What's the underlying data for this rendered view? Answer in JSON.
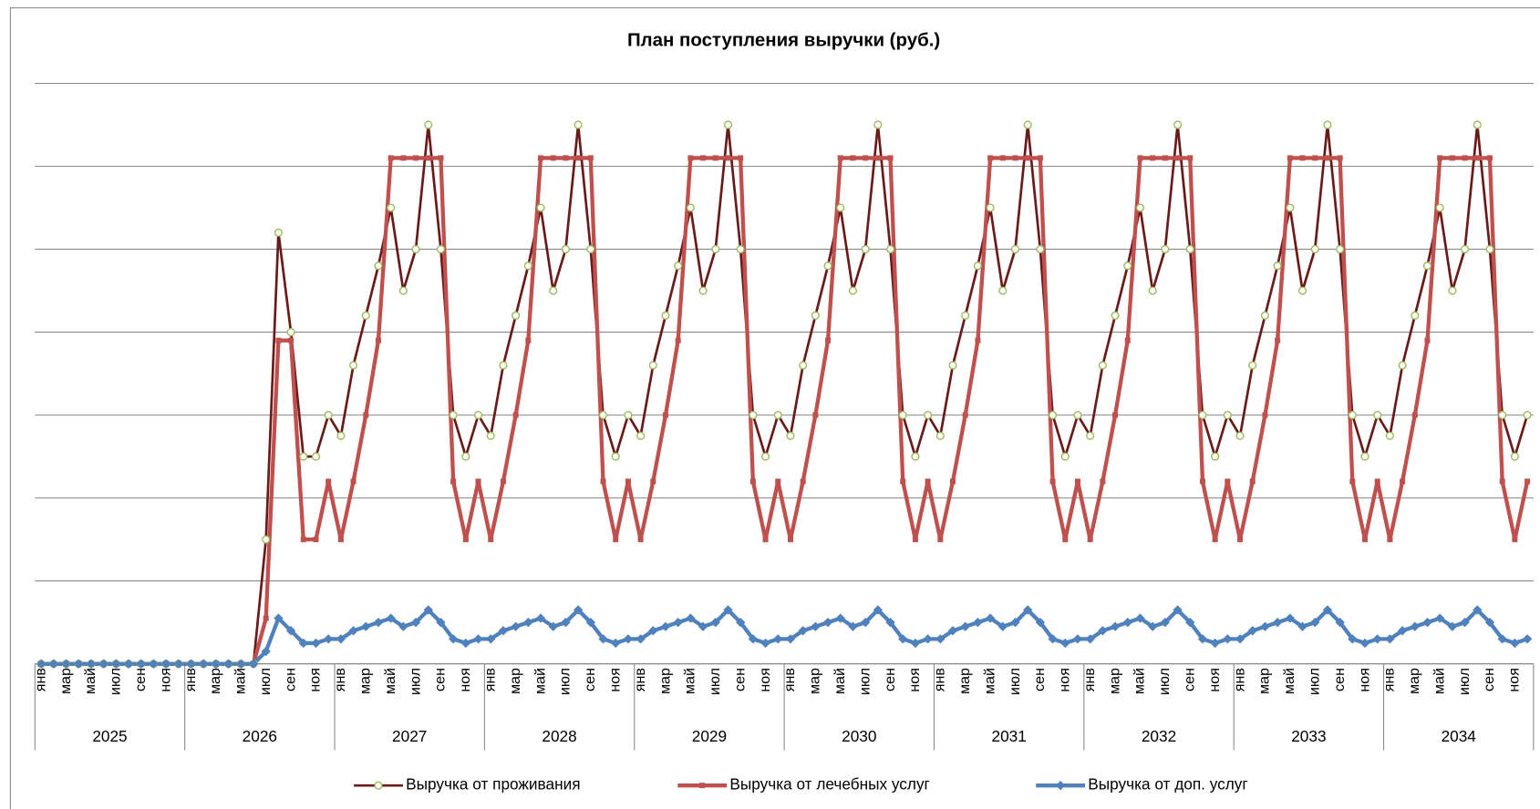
{
  "chart_data": {
    "type": "line",
    "title": "План поступления выручки (руб.)",
    "categories": [
      "янв",
      null,
      "мар",
      null,
      "май",
      null,
      "июл",
      null,
      "сен",
      null,
      "ноя",
      null,
      "янв",
      null,
      "мар",
      null,
      "май",
      null,
      "июл",
      null,
      "сен",
      null,
      "ноя",
      null,
      "янв",
      null,
      "мар",
      null,
      "май",
      null,
      "июл",
      null,
      "сен",
      null,
      "ноя",
      null,
      "янв",
      null,
      "мар",
      null,
      "май",
      null,
      "июл",
      null,
      "сен",
      null,
      "ноя",
      null,
      "янв",
      null,
      "мар",
      null,
      "май",
      null,
      "июл",
      null,
      "сен",
      null,
      "ноя",
      null,
      "янв",
      null,
      "мар",
      null,
      "май",
      null,
      "июл",
      null,
      "сен",
      null,
      "ноя",
      null,
      "янв",
      null,
      "мар",
      null,
      "май",
      null,
      "июл",
      null,
      "сен",
      null,
      "ноя",
      null,
      "янв",
      null,
      "мар",
      null,
      "май",
      null,
      "июл",
      null,
      "сен",
      null,
      "ноя",
      null,
      "янв",
      null,
      "мар",
      null,
      "май",
      null,
      "июл",
      null,
      "сен",
      null,
      "ноя",
      null,
      "янв",
      null,
      "мар",
      null,
      "май",
      null,
      "июл",
      null,
      "сен",
      null,
      "ноя",
      null
    ],
    "category_groups": [
      "2025",
      "2026",
      "2027",
      "2028",
      "2029",
      "2030",
      "2031",
      "2032",
      "2033",
      "2034"
    ],
    "series": [
      {
        "name": "Выручка от проживания",
        "color": "#6b1a1a",
        "marker": "circle",
        "marker_color": "#9bbb59",
        "values": [
          0,
          0,
          0,
          0,
          0,
          0,
          0,
          0,
          0,
          0,
          0,
          0,
          0,
          0,
          0,
          0,
          0,
          0,
          1.5,
          5.2,
          4,
          2.5,
          2.5,
          3,
          2.75,
          3.6,
          4.2,
          4.8,
          5.5,
          4.5,
          5,
          6.5,
          5,
          3,
          2.5,
          3,
          2.75,
          3.6,
          4.2,
          4.8,
          5.5,
          4.5,
          5,
          6.5,
          5,
          3,
          2.5,
          3,
          2.75,
          3.6,
          4.2,
          4.8,
          5.5,
          4.5,
          5,
          6.5,
          5,
          3,
          2.5,
          3,
          2.75,
          3.6,
          4.2,
          4.8,
          5.5,
          4.5,
          5,
          6.5,
          5,
          3,
          2.5,
          3,
          2.75,
          3.6,
          4.2,
          4.8,
          5.5,
          4.5,
          5,
          6.5,
          5,
          3,
          2.5,
          3,
          2.75,
          3.6,
          4.2,
          4.8,
          5.5,
          4.5,
          5,
          6.5,
          5,
          3,
          2.5,
          3,
          2.75,
          3.6,
          4.2,
          4.8,
          5.5,
          4.5,
          5,
          6.5,
          5,
          3,
          2.5,
          3,
          2.75,
          3.6,
          4.2,
          4.8,
          5.5,
          4.5,
          5,
          6.5,
          5,
          3,
          2.5,
          3
        ]
      },
      {
        "name": "Выручка от лечебных услуг",
        "color": "#c0504d",
        "marker": "square",
        "marker_color": "#c0504d",
        "values": [
          0,
          0,
          0,
          0,
          0,
          0,
          0,
          0,
          0,
          0,
          0,
          0,
          0,
          0,
          0,
          0,
          0,
          0,
          0.55,
          3.9,
          3.9,
          1.5,
          1.5,
          2.2,
          1.5,
          2.2,
          3,
          3.9,
          6.1,
          6.1,
          6.1,
          6.1,
          6.1,
          2.2,
          1.5,
          2.2,
          1.5,
          2.2,
          3,
          3.9,
          6.1,
          6.1,
          6.1,
          6.1,
          6.1,
          2.2,
          1.5,
          2.2,
          1.5,
          2.2,
          3,
          3.9,
          6.1,
          6.1,
          6.1,
          6.1,
          6.1,
          2.2,
          1.5,
          2.2,
          1.5,
          2.2,
          3,
          3.9,
          6.1,
          6.1,
          6.1,
          6.1,
          6.1,
          2.2,
          1.5,
          2.2,
          1.5,
          2.2,
          3,
          3.9,
          6.1,
          6.1,
          6.1,
          6.1,
          6.1,
          2.2,
          1.5,
          2.2,
          1.5,
          2.2,
          3,
          3.9,
          6.1,
          6.1,
          6.1,
          6.1,
          6.1,
          2.2,
          1.5,
          2.2,
          1.5,
          2.2,
          3,
          3.9,
          6.1,
          6.1,
          6.1,
          6.1,
          6.1,
          2.2,
          1.5,
          2.2,
          1.5,
          2.2,
          3,
          3.9,
          6.1,
          6.1,
          6.1,
          6.1,
          6.1,
          2.2,
          1.5,
          2.2
        ]
      },
      {
        "name": "Выручка от доп. услуг",
        "color": "#4f81bd",
        "marker": "diamond",
        "marker_color": "#4f81bd",
        "values": [
          0,
          0,
          0,
          0,
          0,
          0,
          0,
          0,
          0,
          0,
          0,
          0,
          0,
          0,
          0,
          0,
          0,
          0,
          0.15,
          0.55,
          0.4,
          0.25,
          0.25,
          0.3,
          0.3,
          0.4,
          0.45,
          0.5,
          0.55,
          0.45,
          0.5,
          0.65,
          0.5,
          0.3,
          0.25,
          0.3,
          0.3,
          0.4,
          0.45,
          0.5,
          0.55,
          0.45,
          0.5,
          0.65,
          0.5,
          0.3,
          0.25,
          0.3,
          0.3,
          0.4,
          0.45,
          0.5,
          0.55,
          0.45,
          0.5,
          0.65,
          0.5,
          0.3,
          0.25,
          0.3,
          0.3,
          0.4,
          0.45,
          0.5,
          0.55,
          0.45,
          0.5,
          0.65,
          0.5,
          0.3,
          0.25,
          0.3,
          0.3,
          0.4,
          0.45,
          0.5,
          0.55,
          0.45,
          0.5,
          0.65,
          0.5,
          0.3,
          0.25,
          0.3,
          0.3,
          0.4,
          0.45,
          0.5,
          0.55,
          0.45,
          0.5,
          0.65,
          0.5,
          0.3,
          0.25,
          0.3,
          0.3,
          0.4,
          0.45,
          0.5,
          0.55,
          0.45,
          0.5,
          0.65,
          0.5,
          0.3,
          0.25,
          0.3,
          0.3,
          0.4,
          0.45,
          0.5,
          0.55,
          0.45,
          0.5,
          0.65,
          0.5,
          0.3,
          0.25,
          0.3
        ]
      }
    ],
    "ylim": [
      0,
      7
    ],
    "yticks": [
      0,
      1,
      2,
      3,
      4,
      5,
      6,
      7
    ],
    "grid": true,
    "legend": "bottom"
  }
}
